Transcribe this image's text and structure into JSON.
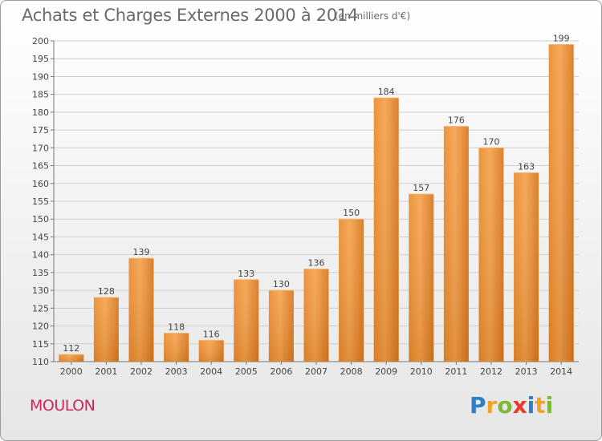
{
  "header": {
    "title": "Achats et Charges Externes 2000 à 2014",
    "subtitle": "(en milliers d'€)"
  },
  "footer": {
    "commune": "MOULON",
    "logo": "Proxiti",
    "logo_letters": [
      {
        "ch": "P",
        "color": "#2e7fc4"
      },
      {
        "ch": "r",
        "color": "#f2a32a"
      },
      {
        "ch": "o",
        "color": "#7cb83a"
      },
      {
        "ch": "x",
        "color": "#e53c2e"
      },
      {
        "ch": "i",
        "color": "#2e7fc4"
      },
      {
        "ch": "t",
        "color": "#f2a32a"
      },
      {
        "ch": "i",
        "color": "#7cb83a"
      }
    ]
  },
  "chart_data": {
    "type": "bar",
    "title": "Achats et Charges Externes 2000 à 2014",
    "subtitle": "(en milliers d'€)",
    "xlabel": "",
    "ylabel": "",
    "categories": [
      "2000",
      "2001",
      "2002",
      "2003",
      "2004",
      "2005",
      "2006",
      "2007",
      "2008",
      "2009",
      "2010",
      "2011",
      "2012",
      "2013",
      "2014"
    ],
    "values": [
      112,
      128,
      139,
      118,
      116,
      133,
      130,
      136,
      150,
      184,
      157,
      176,
      170,
      163,
      199
    ],
    "ylim": [
      110,
      200
    ],
    "yticks": [
      110,
      115,
      120,
      125,
      130,
      135,
      140,
      145,
      150,
      155,
      160,
      165,
      170,
      175,
      180,
      185,
      190,
      195,
      200
    ],
    "grid": true,
    "bar_color_top": "#f5a450",
    "bar_color_bottom": "#d6761a"
  }
}
